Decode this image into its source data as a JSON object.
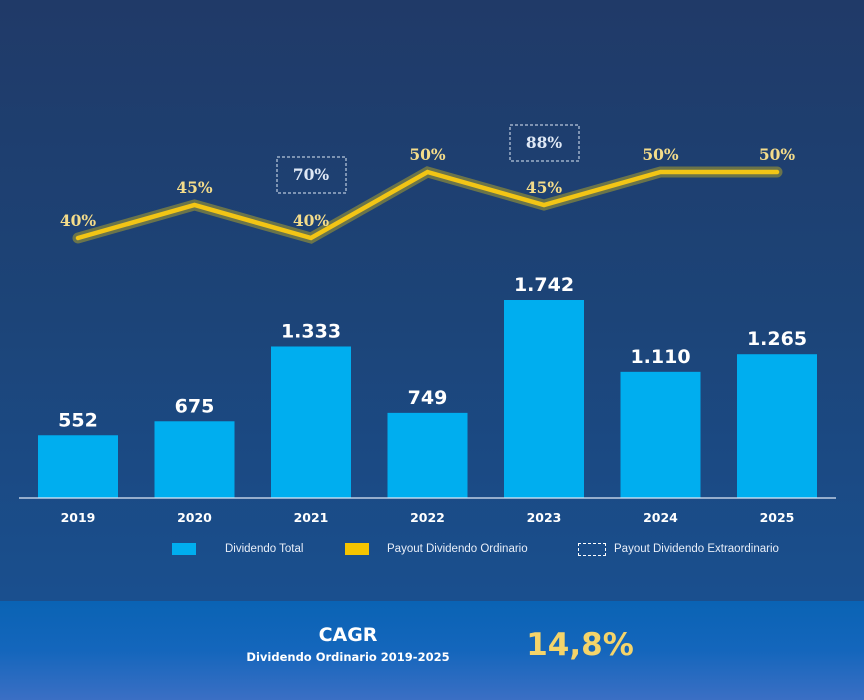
{
  "chart_data": {
    "type": "bar",
    "title": "",
    "xlabel": "",
    "ylabel": "",
    "categories": [
      "2019",
      "2020",
      "2021",
      "2022",
      "2023",
      "2024",
      "2025"
    ],
    "series": [
      {
        "name": "Dividendo Total",
        "type": "bar",
        "values": [
          552,
          675,
          1333,
          749,
          1742,
          1110,
          1265
        ],
        "labels": [
          "552",
          "675",
          "1.333",
          "749",
          "1.742",
          "1.110",
          "1.265"
        ],
        "color": "#00aeef"
      },
      {
        "name": "Payout Dividendo Ordinario",
        "type": "line",
        "values": [
          40,
          45,
          40,
          50,
          45,
          50,
          50
        ],
        "labels": [
          "40%",
          "45%",
          "40%",
          "50%",
          "45%",
          "50%",
          "50%"
        ],
        "color": "#f2c515"
      },
      {
        "name": "Payout Dividendo Extraordinario",
        "type": "annotation",
        "values": [
          null,
          null,
          70,
          null,
          88,
          null,
          null
        ],
        "labels": [
          null,
          null,
          "70%",
          null,
          "88%",
          null,
          null
        ],
        "style": "dashed-box"
      }
    ],
    "ylim_bar": [
      0,
      2300
    ],
    "ylim_line": [
      0,
      60
    ],
    "grid": false,
    "legend": {
      "position": "bottom",
      "entries": [
        "Dividendo Total",
        "Payout Dividendo Ordinario",
        "Payout Dividendo Extraordinario"
      ]
    }
  },
  "legend": {
    "items": [
      {
        "label": "Dividendo Total",
        "color": "#00aeef",
        "kind": "solid"
      },
      {
        "label": "Payout Dividendo Ordinario",
        "color": "#f5c400",
        "kind": "solid"
      },
      {
        "label": "Payout Dividendo Extraordinario",
        "color": "#ffffff",
        "kind": "dashed"
      }
    ]
  },
  "footer": {
    "title": "CAGR",
    "subtitle": "Dividendo Ordinario 2019-2025",
    "value": "14,8%"
  },
  "colors": {
    "bar": "#00aeef",
    "line": "#f2c515",
    "line_label": "#f4dc8a",
    "bar_label": "#ffffff",
    "extra_label": "#dfe8f5",
    "cagr_value": "#f4d46a"
  }
}
